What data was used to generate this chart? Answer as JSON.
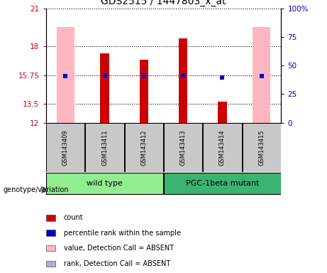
{
  "title": "GDS2515 / 1447803_x_at",
  "samples": [
    "GSM143409",
    "GSM143411",
    "GSM143412",
    "GSM143413",
    "GSM143414",
    "GSM143415"
  ],
  "ylim_left": [
    12,
    21
  ],
  "ylim_right": [
    0,
    100
  ],
  "left_ticks": [
    12,
    13.5,
    15.75,
    18,
    21
  ],
  "right_ticks": [
    0,
    25,
    50,
    75,
    100
  ],
  "left_tick_labels": [
    "12",
    "13.5",
    "15.75",
    "18",
    "21"
  ],
  "right_tick_labels": [
    "0",
    "25",
    "50",
    "75",
    "100%"
  ],
  "count_values": [
    null,
    17.45,
    16.95,
    18.65,
    13.65,
    null
  ],
  "percentile_values": [
    15.65,
    15.75,
    15.73,
    15.75,
    15.58,
    15.68
  ],
  "absent_value_bars": [
    19.5,
    null,
    null,
    null,
    null,
    19.5
  ],
  "absent_rank_values": [
    15.65,
    null,
    null,
    null,
    null,
    15.68
  ],
  "group1_label": "wild type",
  "group2_label": "PGC-1beta mutant",
  "group1_color": "#90EE90",
  "group2_color": "#3CB371",
  "bar_color_count": "#CC0000",
  "bar_color_percentile": "#0000CC",
  "bar_color_absent_value": "#FFB6C1",
  "bar_color_absent_rank": "#AAAADD",
  "sample_box_color": "#C8C8C8",
  "left_axis_color": "#CC0000",
  "right_axis_color": "#0000CC",
  "legend_items": [
    {
      "color": "#CC0000",
      "label": "count"
    },
    {
      "color": "#0000CC",
      "label": "percentile rank within the sample"
    },
    {
      "color": "#FFB6C1",
      "label": "value, Detection Call = ABSENT"
    },
    {
      "color": "#AAAADD",
      "label": "rank, Detection Call = ABSENT"
    }
  ]
}
